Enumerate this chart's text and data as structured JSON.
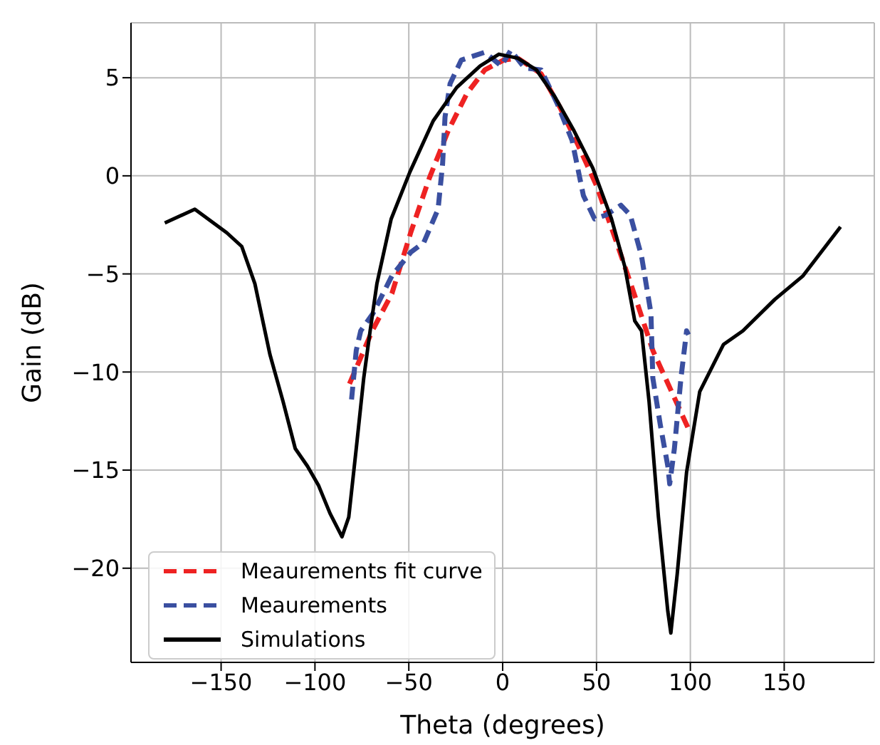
{
  "chart_data": {
    "type": "line",
    "xlabel": "Theta (degrees)",
    "ylabel": "Gain (dB)",
    "xlim": [
      -198,
      198
    ],
    "ylim": [
      -24.8,
      7.8
    ],
    "xticks": [
      -150,
      -100,
      -50,
      0,
      50,
      100,
      150
    ],
    "yticks": [
      -20,
      -15,
      -10,
      -5,
      0,
      5
    ],
    "grid": true,
    "legend": "bottom left",
    "series": [
      {
        "name": "Meaurements fit curve",
        "color": "#ee2222",
        "line_style": "dashed",
        "x": [
          -81.6,
          -69.5,
          -59,
          -49,
          -39,
          -29,
          -19,
          -9.5,
          0.5,
          8,
          20.5,
          30.5,
          40,
          50,
          60,
          70,
          80,
          90,
          99
        ],
        "values": [
          -10.6,
          -7.9,
          -6.0,
          -2.9,
          -0.1,
          2.3,
          4.2,
          5.4,
          5.9,
          6.0,
          5.2,
          3.5,
          1.6,
          -0.5,
          -3.2,
          -6.0,
          -8.9,
          -11.0,
          -12.9
        ]
      },
      {
        "name": "Meaurements",
        "color": "#3a4fa0",
        "line_style": "dashed",
        "x": [
          -80.5,
          -78,
          -75.6,
          -69,
          -59,
          -49,
          -42,
          -34.4,
          -32,
          -30.7,
          -28,
          -22,
          -9.5,
          -7,
          -0.7,
          4.3,
          11.7,
          20.5,
          29,
          37,
          43,
          49,
          55,
          63,
          68,
          74,
          79,
          80,
          84,
          88,
          89,
          91.5,
          95,
          98,
          99
        ],
        "values": [
          -11.4,
          -8.9,
          -7.9,
          -7.0,
          -5.1,
          -3.9,
          -3.4,
          -1.7,
          0.6,
          3.0,
          4.7,
          5.9,
          6.3,
          6.1,
          5.6,
          6.4,
          5.5,
          5.4,
          3.7,
          1.8,
          -1.0,
          -2.2,
          -2.0,
          -1.5,
          -2.0,
          -4.1,
          -7.0,
          -10.3,
          -12.7,
          -14.8,
          -15.7,
          -13.9,
          -10.3,
          -7.9,
          -8.1
        ]
      },
      {
        "name": "Simulations",
        "color": "#000000",
        "line_style": "solid",
        "x": [
          -180,
          -164,
          -147,
          -139,
          -132,
          -124,
          -117,
          -110.5,
          -104,
          -98,
          -92,
          -85.6,
          -82,
          -78,
          -74,
          -70.6,
          -67,
          -59.4,
          -49.4,
          -37,
          -24.5,
          -12,
          -2,
          8,
          18,
          28,
          38,
          48,
          58,
          65,
          70.4,
          74,
          78,
          83,
          88,
          89.6,
          93,
          98,
          105,
          117.6,
          128,
          145,
          160,
          180
        ],
        "values": [
          -2.4,
          -1.7,
          -2.9,
          -3.6,
          -5.5,
          -9.1,
          -11.5,
          -13.9,
          -14.8,
          -15.8,
          -17.2,
          -18.4,
          -17.4,
          -13.9,
          -10.3,
          -7.9,
          -5.5,
          -2.2,
          0.2,
          2.8,
          4.5,
          5.6,
          6.2,
          6.0,
          5.4,
          4.0,
          2.3,
          0.4,
          -2.2,
          -4.6,
          -7.4,
          -7.9,
          -11.5,
          -17.4,
          -22.2,
          -23.3,
          -20.3,
          -15.1,
          -11.0,
          -8.6,
          -7.9,
          -6.3,
          -5.1,
          -2.6
        ]
      }
    ]
  }
}
